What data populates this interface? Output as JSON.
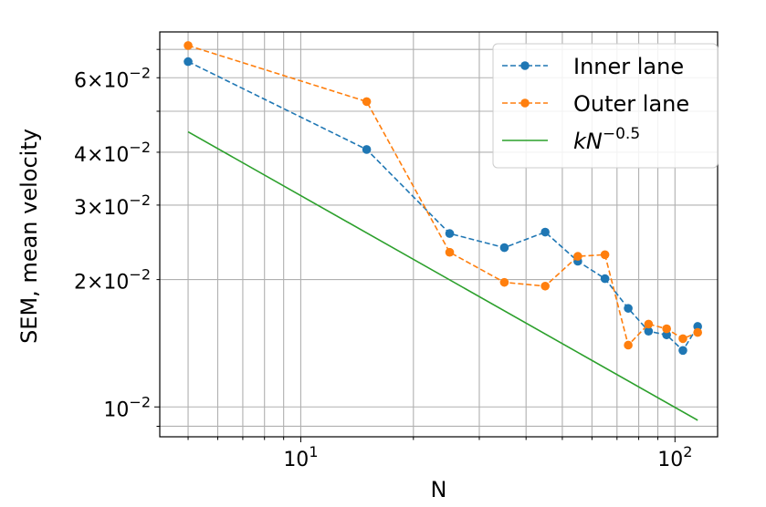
{
  "chart_data": {
    "type": "line",
    "xlabel": "N",
    "ylabel": "SEM, mean velocity",
    "xscale": "log",
    "yscale": "log",
    "xlim": [
      4.2,
      130
    ],
    "ylim": [
      0.0085,
      0.077
    ],
    "grid": "both",
    "legend_position": "top-right",
    "x_tick_labels": [
      {
        "value": 10,
        "base": "10",
        "exp": "1"
      },
      {
        "value": 100,
        "base": "10",
        "exp": "2"
      }
    ],
    "y_tick_labels": [
      {
        "value": 0.01,
        "base": "10",
        "exp": "−2"
      },
      {
        "value": 0.02,
        "coef": "2",
        "base": "10",
        "exp": "−2"
      },
      {
        "value": 0.03,
        "coef": "3",
        "base": "10",
        "exp": "−2"
      },
      {
        "value": 0.04,
        "coef": "4",
        "base": "10",
        "exp": "−2"
      },
      {
        "value": 0.06,
        "coef": "6",
        "base": "10",
        "exp": "−2"
      }
    ],
    "series": [
      {
        "name": "Inner lane",
        "color": "#1f77b4",
        "style": "dashed",
        "marker": "circle",
        "x": [
          5,
          15,
          25,
          35,
          45,
          55,
          65,
          75,
          85,
          95,
          105,
          115
        ],
        "y": [
          0.0655,
          0.0406,
          0.0257,
          0.0238,
          0.0259,
          0.0221,
          0.0201,
          0.0171,
          0.0151,
          0.0148,
          0.0136,
          0.0155
        ]
      },
      {
        "name": "Outer lane",
        "color": "#ff7f0e",
        "style": "dashed",
        "marker": "circle",
        "x": [
          5,
          15,
          25,
          35,
          45,
          55,
          65,
          75,
          85,
          95,
          105,
          115
        ],
        "y": [
          0.0715,
          0.0527,
          0.0232,
          0.0197,
          0.0193,
          0.0227,
          0.0229,
          0.014,
          0.0157,
          0.0153,
          0.0145,
          0.015
        ]
      },
      {
        "name_parts": {
          "base": "kN",
          "exp": "−0.5"
        },
        "color": "#2ca02c",
        "style": "solid",
        "marker": "none",
        "x": [
          5,
          115
        ],
        "y": [
          0.0447,
          0.0093
        ]
      }
    ]
  }
}
